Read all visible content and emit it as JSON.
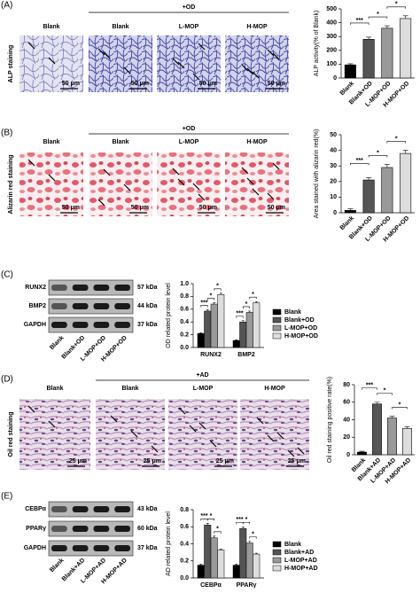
{
  "figure_panels": [
    {
      "label": "(A)",
      "stain": "ALP staining",
      "group": "+OD",
      "images": [
        "Blank",
        "Blank",
        "L-MOP",
        "H-MOP"
      ],
      "scale": "50 μm"
    },
    {
      "label": "(B)",
      "stain": "Alizarin red staining",
      "group": "+OD",
      "images": [
        "Blank",
        "Blank",
        "L-MOP",
        "H-MOP"
      ],
      "scale": "50 μm"
    },
    {
      "label": "(C)",
      "blot": {
        "proteins": [
          "RUNX2",
          "BMP2",
          "GAPDH"
        ],
        "sizes": [
          "57 kDa",
          "44 kDa",
          "37 kDa"
        ],
        "lanes": [
          "Blank",
          "Blank+OD",
          "L-MOP+OD",
          "H-MOP+OD"
        ]
      }
    },
    {
      "label": "(D)",
      "stain": "Oil red staining",
      "group": "+AD",
      "images": [
        "Blank",
        "Blank",
        "L-MOP",
        "H-MOP"
      ],
      "scale": "25 μm"
    },
    {
      "label": "(E)",
      "blot": {
        "proteins": [
          "CEBPα",
          "PPARγ",
          "GAPDH"
        ],
        "sizes": [
          "43 kDa",
          "60 kDa",
          "37 kDa"
        ],
        "lanes": [
          "Blank",
          "Blank+AD",
          "L-MOP+AD",
          "H-MOP+AD"
        ]
      }
    }
  ],
  "chart_data": [
    {
      "type": "bar",
      "y_label": "ALP activity(% of Blank)",
      "categories": [
        "Blank",
        "Blank+OD",
        "L-MOP+OD",
        "H-MOP+OD"
      ],
      "values": [
        95,
        280,
        360,
        430
      ],
      "errors": [
        8,
        15,
        18,
        20
      ],
      "colors": [
        "#000000",
        "#555555",
        "#999999",
        "#dddddd"
      ],
      "ylim": [
        0,
        500
      ],
      "yticks": [
        0,
        100,
        200,
        300,
        400,
        500
      ],
      "significance": [
        "***",
        "*",
        "*"
      ]
    },
    {
      "type": "bar",
      "y_label": "Area stained with alizarin red(%)",
      "categories": [
        "Blank",
        "Blank+OD",
        "L-MOP+OD",
        "H-MOP+OD"
      ],
      "values": [
        1.5,
        21,
        29,
        38
      ],
      "errors": [
        1,
        1.5,
        2,
        2
      ],
      "colors": [
        "#000000",
        "#555555",
        "#999999",
        "#dddddd"
      ],
      "ylim": [
        0,
        50
      ],
      "yticks": [
        0,
        10,
        20,
        30,
        40,
        50
      ],
      "significance": [
        "***",
        "*",
        "*"
      ]
    },
    {
      "type": "grouped_bar",
      "y_label": "OD related protein level",
      "categories": [
        "RUNX2",
        "BMP2"
      ],
      "series": [
        {
          "name": "Blank",
          "color": "#000000",
          "values": [
            0.22,
            0.11
          ],
          "errors": [
            0.01,
            0.01
          ]
        },
        {
          "name": "Blank+OD",
          "color": "#555555",
          "values": [
            0.57,
            0.4
          ],
          "errors": [
            0.02,
            0.02
          ]
        },
        {
          "name": "L-MOP+OD",
          "color": "#999999",
          "values": [
            0.68,
            0.55
          ],
          "errors": [
            0.02,
            0.02
          ]
        },
        {
          "name": "H-MOP+OD",
          "color": "#dddddd",
          "values": [
            0.83,
            0.7
          ],
          "errors": [
            0.02,
            0.02
          ]
        }
      ],
      "ylim": [
        0,
        1.0
      ],
      "yticks": [
        {
          "value": 0,
          "label": "0.0"
        },
        0.2,
        0.4,
        0.6,
        0.8,
        {
          "value": 1,
          "label": "1.0"
        }
      ],
      "significance": [
        [
          "***",
          "*",
          "*"
        ],
        [
          "***",
          "*",
          "*"
        ]
      ]
    },
    {
      "type": "bar",
      "y_label": "Oil red staining positive rate(%)",
      "categories": [
        "Blank",
        "Blank+AD",
        "L-MOP+AD",
        "H-MOP+AD"
      ],
      "values": [
        3,
        58,
        42,
        30
      ],
      "errors": [
        1,
        2,
        2,
        2
      ],
      "colors": [
        "#000000",
        "#555555",
        "#999999",
        "#dddddd"
      ],
      "ylim": [
        0,
        80
      ],
      "yticks": [
        0,
        20,
        40,
        60,
        80
      ],
      "significance": [
        "***",
        "*",
        "*"
      ]
    },
    {
      "type": "grouped_bar",
      "y_label": "AD related protein level",
      "categories": [
        "CEBPα",
        "PPARγ"
      ],
      "series": [
        {
          "name": "Blank",
          "color": "#000000",
          "values": [
            0.15,
            0.15
          ],
          "errors": [
            0.01,
            0.01
          ]
        },
        {
          "name": "Blank+AD",
          "color": "#555555",
          "values": [
            0.62,
            0.58
          ],
          "errors": [
            0.02,
            0.02
          ]
        },
        {
          "name": "L-MOP+AD",
          "color": "#999999",
          "values": [
            0.47,
            0.41
          ],
          "errors": [
            0.02,
            0.02
          ]
        },
        {
          "name": "H-MOP+AD",
          "color": "#dddddd",
          "values": [
            0.33,
            0.28
          ],
          "errors": [
            0.01,
            0.01
          ]
        }
      ],
      "ylim": [
        0,
        0.8
      ],
      "yticks": [
        {
          "value": 0,
          "label": "0.0"
        },
        0.2,
        0.4,
        0.6,
        0.8
      ],
      "significance": [
        [
          "***",
          "*",
          "*"
        ],
        [
          "***",
          "*",
          "*"
        ]
      ]
    }
  ]
}
